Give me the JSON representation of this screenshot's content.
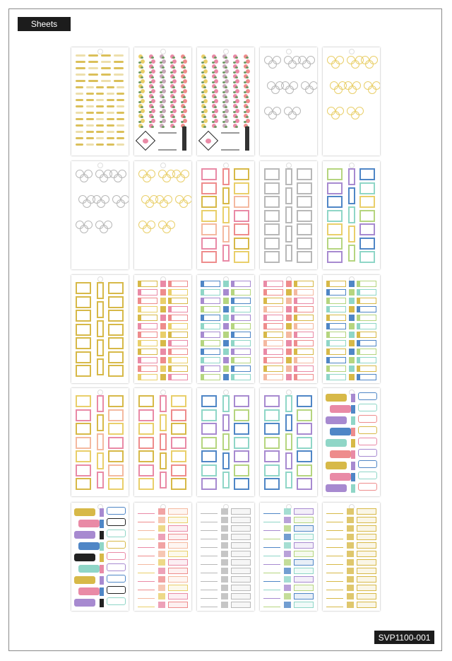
{
  "header": {
    "label": "Sheets"
  },
  "footer": {
    "product_code": "SVP1100-001"
  },
  "colors": {
    "gold": "#d7b948",
    "silver": "#b8b8b8",
    "pink": "#e98aa6",
    "coral": "#ee8c8c",
    "yellow": "#e9cf6a",
    "blue": "#4f86c6",
    "mint": "#8fd6c7",
    "purple": "#a78ad0",
    "green": "#b5d57f",
    "peach": "#f4b9a0",
    "black": "#222222"
  },
  "sheets": [
    {
      "style": "script-words",
      "palette": [
        "gold"
      ]
    },
    {
      "style": "floral-strips",
      "palette": [
        "pink",
        "coral",
        "yellow"
      ]
    },
    {
      "style": "floral-strips",
      "palette": [
        "pink",
        "coral",
        "yellow"
      ]
    },
    {
      "style": "floral-clusters",
      "palette": [
        "silver"
      ]
    },
    {
      "style": "floral-clusters",
      "palette": [
        "yellow"
      ]
    },
    {
      "style": "floral-clusters",
      "palette": [
        "silver"
      ]
    },
    {
      "style": "floral-clusters",
      "palette": [
        "yellow"
      ]
    },
    {
      "style": "box-labels",
      "palette": [
        "pink",
        "coral",
        "gold",
        "yellow",
        "peach"
      ]
    },
    {
      "style": "box-labels",
      "palette": [
        "silver"
      ]
    },
    {
      "style": "box-labels",
      "palette": [
        "green",
        "purple",
        "blue",
        "mint",
        "yellow"
      ]
    },
    {
      "style": "box-labels",
      "palette": [
        "gold"
      ]
    },
    {
      "style": "bar-labels",
      "palette": [
        "gold",
        "pink",
        "coral",
        "yellow"
      ]
    },
    {
      "style": "bar-labels",
      "palette": [
        "blue",
        "mint",
        "purple",
        "green"
      ]
    },
    {
      "style": "bar-labels",
      "palette": [
        "pink",
        "coral",
        "gold",
        "peach"
      ]
    },
    {
      "style": "bar-labels",
      "palette": [
        "gold",
        "blue",
        "green",
        "mint"
      ]
    },
    {
      "style": "box-labels",
      "palette": [
        "yellow",
        "pink",
        "gold",
        "peach"
      ]
    },
    {
      "style": "box-labels",
      "palette": [
        "gold",
        "pink",
        "yellow",
        "coral"
      ]
    },
    {
      "style": "box-labels",
      "palette": [
        "blue",
        "mint",
        "purple",
        "green"
      ]
    },
    {
      "style": "box-labels",
      "palette": [
        "purple",
        "mint",
        "blue",
        "green"
      ]
    },
    {
      "style": "bubbles",
      "palette": [
        "gold",
        "pink",
        "purple",
        "blue",
        "mint",
        "coral"
      ]
    },
    {
      "style": "bubbles",
      "palette": [
        "gold",
        "pink",
        "purple",
        "blue",
        "black",
        "mint"
      ]
    },
    {
      "style": "list-tabs",
      "palette": [
        "pink",
        "coral",
        "peach",
        "yellow"
      ]
    },
    {
      "style": "list-tabs",
      "palette": [
        "silver"
      ]
    },
    {
      "style": "list-tabs",
      "palette": [
        "blue",
        "mint",
        "purple",
        "green"
      ]
    },
    {
      "style": "list-tabs",
      "palette": [
        "gold"
      ]
    }
  ]
}
